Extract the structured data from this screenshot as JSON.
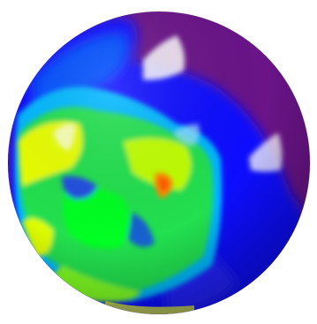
{
  "image": {
    "subject": "colormapped-sphere",
    "colormap": [
      "#5a0a78",
      "#7a1a9a",
      "#3a1aff",
      "#0000ff",
      "#0050ff",
      "#00b0ff",
      "#00e070",
      "#00ff00",
      "#80ff00",
      "#e0ff00",
      "#ffd000",
      "#ff8000"
    ],
    "background": "#ffffff",
    "highlight": "#ffffff"
  }
}
